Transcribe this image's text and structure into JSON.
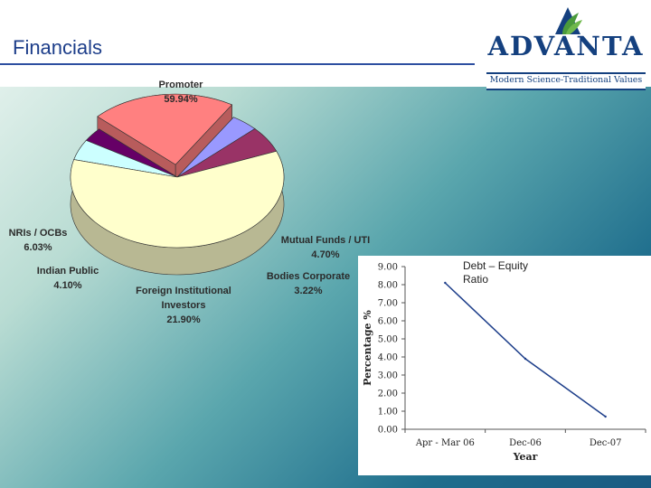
{
  "header": {
    "title": "Financials"
  },
  "logo": {
    "word": "ADVANTA",
    "tagline": "Modern Science-Traditional Values",
    "icon": "advanta-leaf-logo"
  },
  "chart_data": [
    {
      "type": "pie",
      "title": "",
      "style": "3d-exploded",
      "slices": [
        {
          "name": "Promoter",
          "label": "59.94%",
          "value": 59.94,
          "color": "#ffffcc"
        },
        {
          "name": "Mutual Funds / UTI",
          "label": "4.70%",
          "value": 4.7,
          "color": "#ccffff"
        },
        {
          "name": "Bodies Corporate",
          "label": "3.22%",
          "value": 3.22,
          "color": "#660066"
        },
        {
          "name": "Foreign Institutional Investors",
          "label": "21.90%",
          "value": 21.9,
          "color": "#ff8080"
        },
        {
          "name": "Indian Public",
          "label": "4.10%",
          "value": 4.1,
          "color": "#9999ff"
        },
        {
          "name": "NRIs / OCBs",
          "label": "6.03%",
          "value": 6.03,
          "color": "#993366"
        }
      ]
    },
    {
      "type": "line",
      "title": "Debt – Equity Ratio",
      "xlabel": "Year",
      "ylabel": "Percentage %",
      "categories": [
        "Apr - Mar 06",
        "Dec-06",
        "Dec-07"
      ],
      "ylim": [
        0,
        9
      ],
      "yticks": [
        "0.00",
        "1.00",
        "2.00",
        "3.00",
        "4.00",
        "5.00",
        "6.00",
        "7.00",
        "8.00",
        "9.00"
      ],
      "grid": false,
      "series": [
        {
          "values": [
            8.1,
            3.9,
            0.7
          ],
          "color": "#1d3e8a"
        }
      ]
    }
  ]
}
